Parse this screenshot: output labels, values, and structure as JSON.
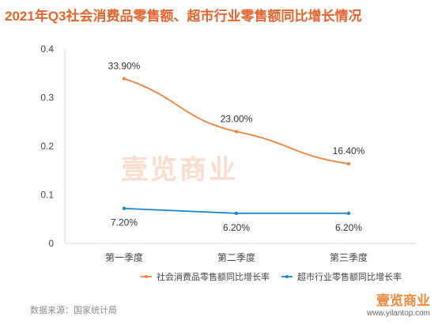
{
  "title": "2021年Q3社会消费品零售额、超市行业零售额同比增长情况",
  "source": "数据来源：国家统计局",
  "watermark": "壹览商业",
  "footer": {
    "brand": "壹览商业",
    "url": "www.yilantop.com"
  },
  "colors": {
    "title": "#e8632b",
    "series_1": "#f0823c",
    "series_2": "#1a87c8",
    "grid": "#d9d9d9"
  },
  "chart_data": {
    "type": "line",
    "title": "2021年Q3社会消费品零售额、超市行业零售额同比增长情况",
    "categories": [
      "第一季度",
      "第二季度",
      "第三季度"
    ],
    "ylim": [
      0,
      0.4
    ],
    "yticks": [
      "0",
      "0.1",
      "0.2",
      "0.3",
      "0.4"
    ],
    "legend_position": "bottom-right",
    "series": [
      {
        "name": "社会消费品零售额同比增长率",
        "values": [
          0.339,
          0.23,
          0.164
        ],
        "labels": [
          "33.90%",
          "23.00%",
          "16.40%"
        ]
      },
      {
        "name": "超市行业零售额同比增长率",
        "values": [
          0.072,
          0.062,
          0.062
        ],
        "labels": [
          "7.20%",
          "6.20%",
          "6.20%"
        ]
      }
    ]
  }
}
